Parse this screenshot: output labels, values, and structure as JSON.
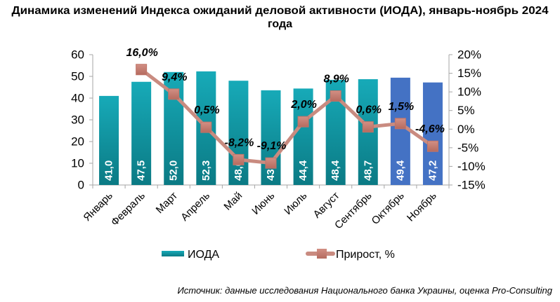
{
  "title": {
    "line1": "Динамика изменений Индекса ожиданий деловой активности (ИОДА), январь-ноябрь 2024",
    "line2": "года"
  },
  "source": "Источник: данные исследования Национального банка Украины, оценка Pro-Consulting",
  "colors": {
    "bar_base_top": "#17aab8",
    "bar_base_bottom": "#0b7a84",
    "bar_highlight": "#4472c4",
    "line": "#c98b80",
    "marker": "#c07468",
    "axis": "#a6a6a6"
  },
  "chart_data": {
    "type": "bar",
    "title": "Динамика изменений Индекса ожиданий деловой активности (ИОДА), январь-ноябрь 2024 года",
    "xlabel": "",
    "ylabel": "",
    "categories": [
      "Январь",
      "Февраль",
      "Март",
      "Апрель",
      "Май",
      "Июнь",
      "Июль",
      "Август",
      "Сентябрь",
      "Октябрь",
      "Ноябрь"
    ],
    "series": [
      {
        "name": "ИОДА",
        "type": "bar",
        "axis": "left",
        "values": [
          41.0,
          47.5,
          52.0,
          52.3,
          48.0,
          43.6,
          44.4,
          48.4,
          48.7,
          49.4,
          47.2
        ],
        "labels": [
          "41,0",
          "47,5",
          "52,0",
          "52,3",
          "48,0",
          "43,6",
          "44,4",
          "48,4",
          "48,7",
          "49,4",
          "47,2"
        ],
        "color_keys": [
          "base",
          "base",
          "base",
          "base",
          "base",
          "base",
          "base",
          "base",
          "base",
          "highlight",
          "highlight"
        ]
      },
      {
        "name": "Прирост, %",
        "type": "line",
        "axis": "right",
        "values": [
          null,
          16.0,
          9.4,
          0.5,
          -8.2,
          -9.1,
          2.0,
          8.9,
          0.6,
          1.5,
          -4.6
        ],
        "labels": [
          null,
          "16,0%",
          "9,4%",
          "0,5%",
          "-8,2%",
          "-9,1%",
          "2,0%",
          "8,9%",
          "0,6%",
          "1,5%",
          "-4,6%"
        ]
      }
    ],
    "y_left": {
      "min": 0,
      "max": 60,
      "step": 10,
      "ticks": [
        "0",
        "10",
        "20",
        "30",
        "40",
        "50",
        "60"
      ]
    },
    "y_right": {
      "min": -15,
      "max": 20,
      "step": 5,
      "ticks": [
        "-15%",
        "-10%",
        "-5%",
        "0%",
        "5%",
        "10%",
        "15%",
        "20%"
      ]
    },
    "grid": false,
    "legend": {
      "position": "bottom",
      "items": [
        {
          "label": "ИОДА",
          "kind": "bar"
        },
        {
          "label": "Прирост, %",
          "kind": "line-marker"
        }
      ]
    }
  }
}
